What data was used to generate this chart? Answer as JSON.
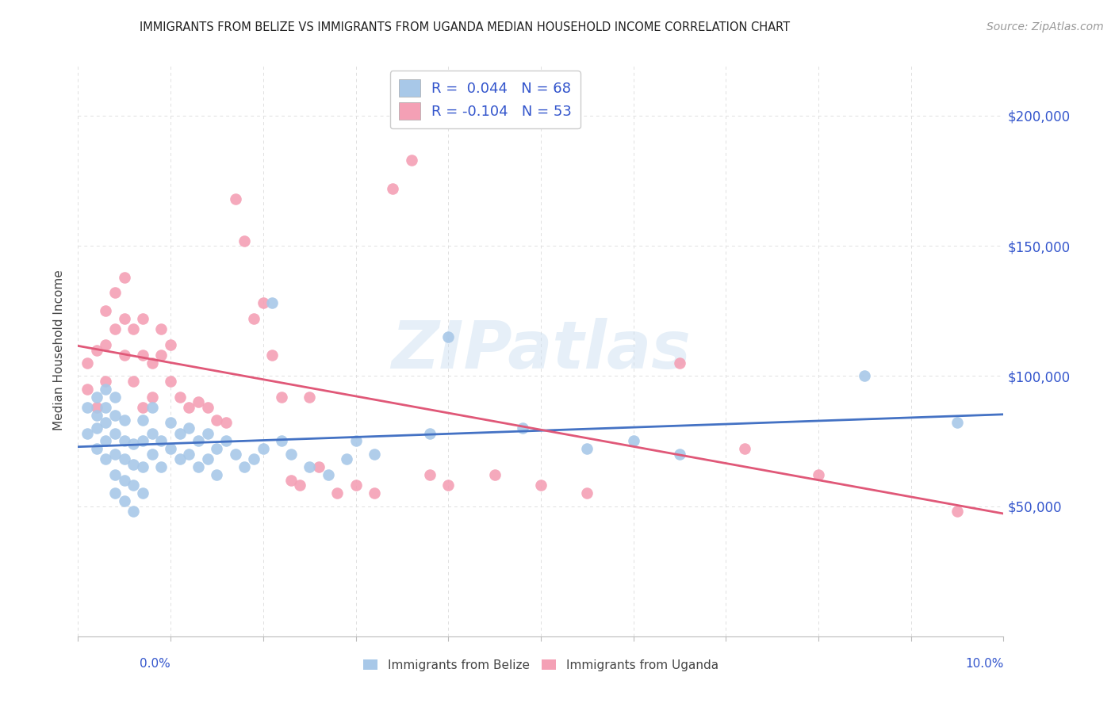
{
  "title": "IMMIGRANTS FROM BELIZE VS IMMIGRANTS FROM UGANDA MEDIAN HOUSEHOLD INCOME CORRELATION CHART",
  "source": "Source: ZipAtlas.com",
  "ylabel": "Median Household Income",
  "watermark": "ZIPatlas",
  "belize_R": 0.044,
  "belize_N": 68,
  "uganda_R": -0.104,
  "uganda_N": 53,
  "belize_color": "#a8c8e8",
  "uganda_color": "#f4a0b5",
  "belize_line_color": "#4472c4",
  "uganda_line_color": "#e05878",
  "legend_text_color": "#3355cc",
  "grid_color": "#e0e0e0",
  "right_axis_color": "#3355cc",
  "xlim": [
    0.0,
    0.1
  ],
  "ylim": [
    0,
    220000
  ],
  "yticks": [
    0,
    50000,
    100000,
    150000,
    200000
  ],
  "ytick_labels": [
    "",
    "$50,000",
    "$100,000",
    "$150,000",
    "$200,000"
  ],
  "belize_x": [
    0.001,
    0.001,
    0.002,
    0.002,
    0.002,
    0.002,
    0.003,
    0.003,
    0.003,
    0.003,
    0.003,
    0.004,
    0.004,
    0.004,
    0.004,
    0.004,
    0.004,
    0.005,
    0.005,
    0.005,
    0.005,
    0.005,
    0.006,
    0.006,
    0.006,
    0.006,
    0.007,
    0.007,
    0.007,
    0.007,
    0.008,
    0.008,
    0.008,
    0.009,
    0.009,
    0.01,
    0.01,
    0.011,
    0.011,
    0.012,
    0.012,
    0.013,
    0.013,
    0.014,
    0.014,
    0.015,
    0.015,
    0.016,
    0.017,
    0.018,
    0.019,
    0.02,
    0.021,
    0.022,
    0.023,
    0.025,
    0.027,
    0.029,
    0.03,
    0.032,
    0.038,
    0.04,
    0.048,
    0.055,
    0.06,
    0.065,
    0.085,
    0.095
  ],
  "belize_y": [
    78000,
    88000,
    72000,
    80000,
    85000,
    92000,
    68000,
    75000,
    82000,
    88000,
    95000,
    55000,
    62000,
    70000,
    78000,
    85000,
    92000,
    52000,
    60000,
    68000,
    75000,
    83000,
    48000,
    58000,
    66000,
    74000,
    55000,
    65000,
    75000,
    83000,
    70000,
    78000,
    88000,
    65000,
    75000,
    72000,
    82000,
    68000,
    78000,
    70000,
    80000,
    65000,
    75000,
    68000,
    78000,
    62000,
    72000,
    75000,
    70000,
    65000,
    68000,
    72000,
    128000,
    75000,
    70000,
    65000,
    62000,
    68000,
    75000,
    70000,
    78000,
    115000,
    80000,
    72000,
    75000,
    70000,
    100000,
    82000
  ],
  "uganda_x": [
    0.001,
    0.001,
    0.002,
    0.002,
    0.003,
    0.003,
    0.003,
    0.004,
    0.004,
    0.005,
    0.005,
    0.005,
    0.006,
    0.006,
    0.007,
    0.007,
    0.007,
    0.008,
    0.008,
    0.009,
    0.009,
    0.01,
    0.01,
    0.011,
    0.012,
    0.013,
    0.014,
    0.015,
    0.016,
    0.017,
    0.018,
    0.019,
    0.02,
    0.021,
    0.022,
    0.023,
    0.024,
    0.025,
    0.026,
    0.028,
    0.03,
    0.032,
    0.034,
    0.036,
    0.038,
    0.04,
    0.045,
    0.05,
    0.055,
    0.065,
    0.072,
    0.08,
    0.095
  ],
  "uganda_y": [
    95000,
    105000,
    88000,
    110000,
    98000,
    112000,
    125000,
    118000,
    132000,
    108000,
    122000,
    138000,
    98000,
    118000,
    88000,
    108000,
    122000,
    92000,
    105000,
    108000,
    118000,
    98000,
    112000,
    92000,
    88000,
    90000,
    88000,
    83000,
    82000,
    168000,
    152000,
    122000,
    128000,
    108000,
    92000,
    60000,
    58000,
    92000,
    65000,
    55000,
    58000,
    55000,
    172000,
    183000,
    62000,
    58000,
    62000,
    58000,
    55000,
    105000,
    72000,
    62000,
    48000
  ]
}
